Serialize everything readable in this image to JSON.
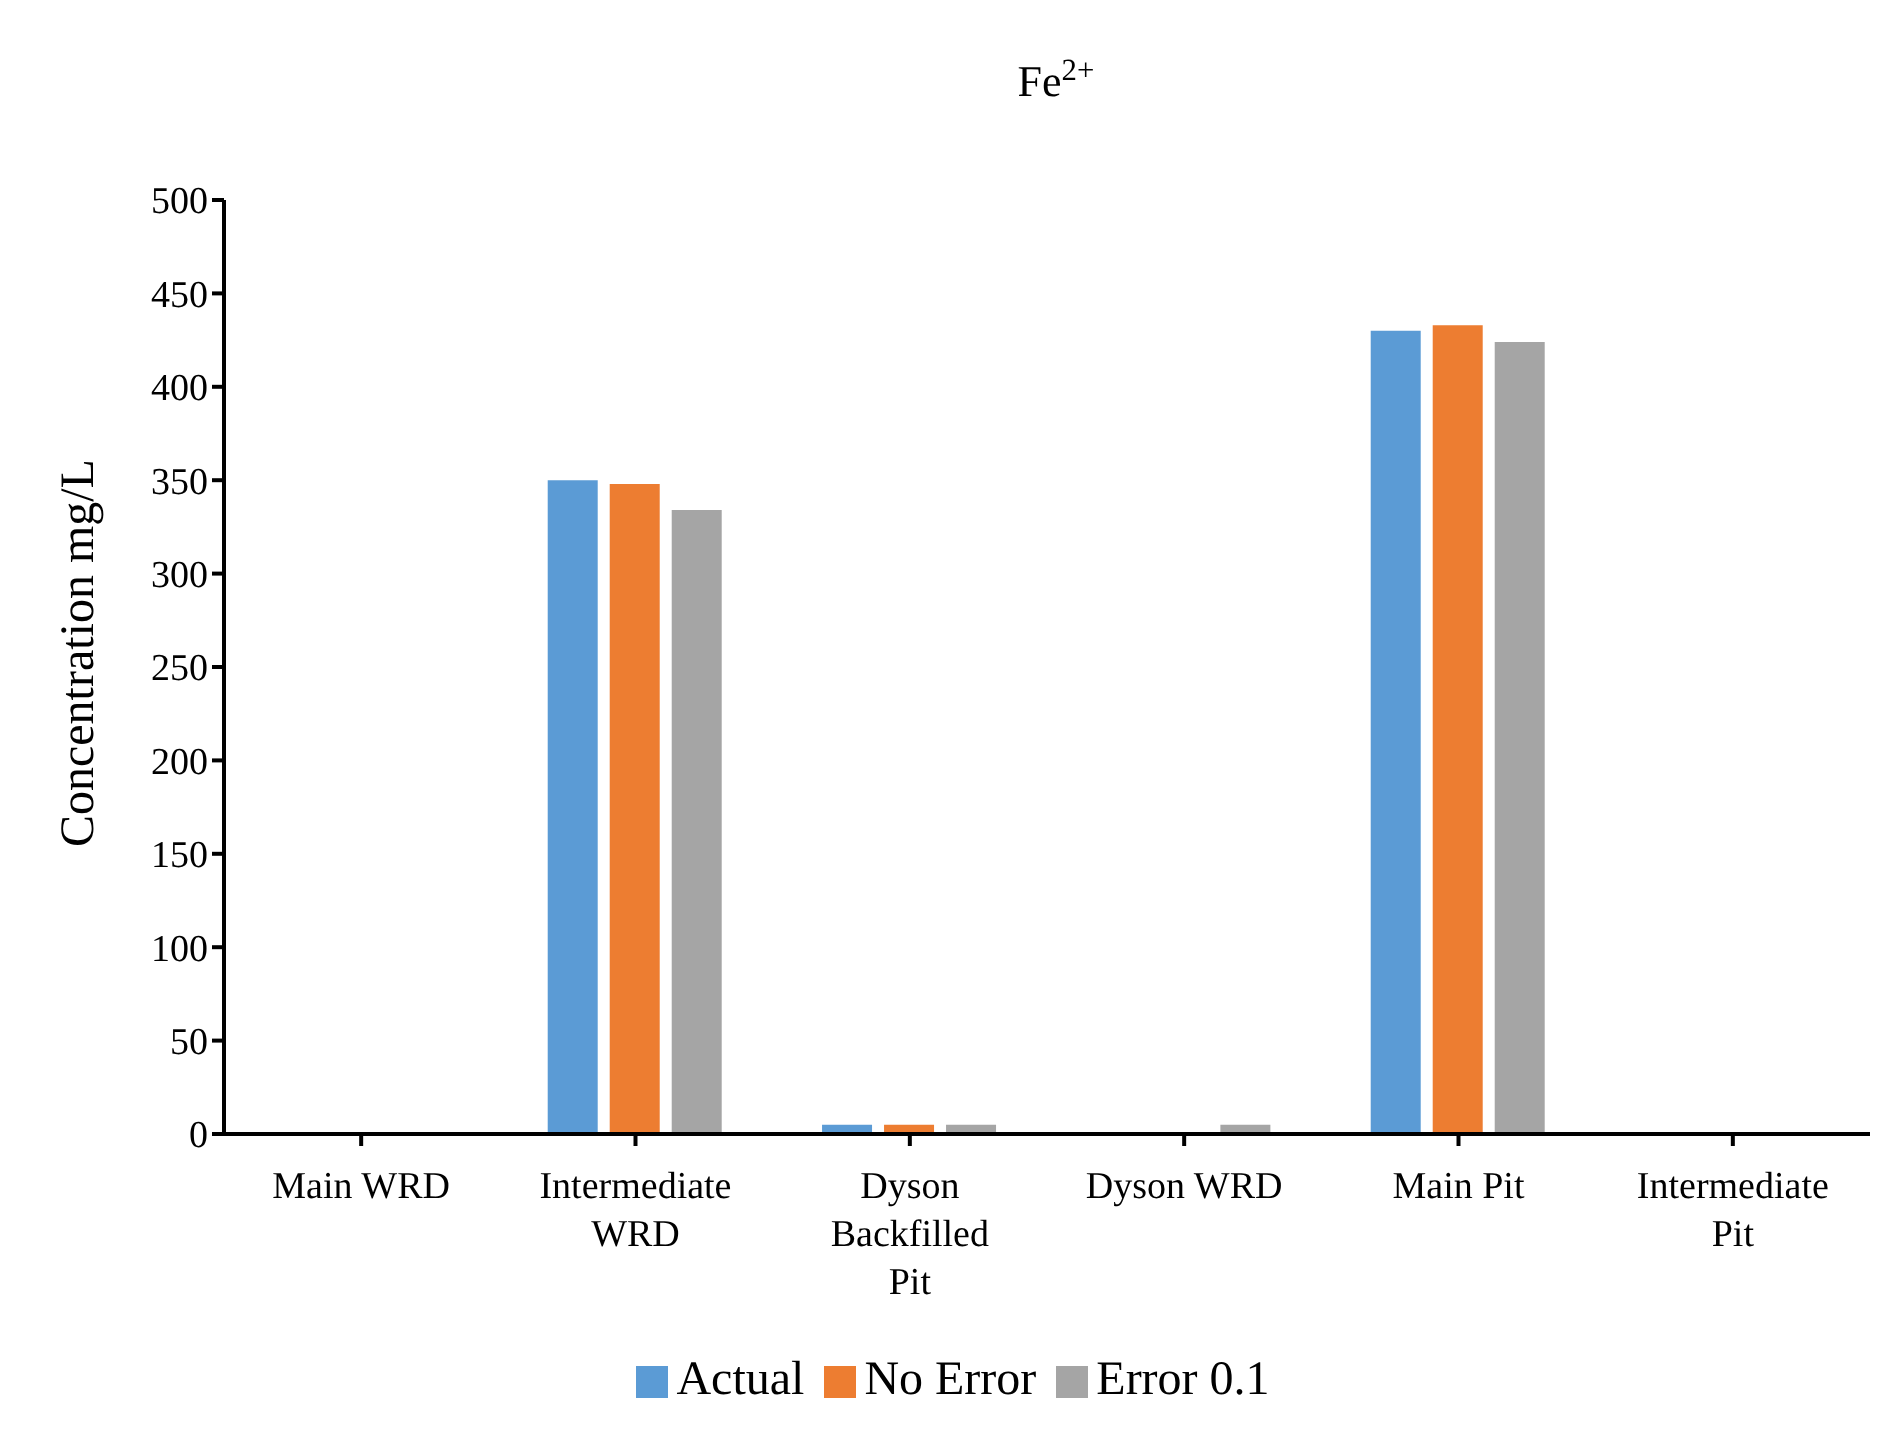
{
  "chart_data": {
    "type": "bar",
    "title": "Fe$^{2+}$",
    "ylabel": "Concentration mg/L",
    "categories": [
      "Main WRD",
      "Intermediate WRD",
      "Dyson Backfilled Pit",
      "Dyson WRD",
      "Main Pit",
      "Intermediate Pit"
    ],
    "series": [
      {
        "name": "Actual",
        "color": "#5b9bd5",
        "values": [
          0,
          350,
          5,
          0,
          430,
          0
        ]
      },
      {
        "name": "No Error",
        "color": "#ed7d31",
        "values": [
          0,
          348,
          5,
          0,
          433,
          0
        ]
      },
      {
        "name": "Error 0.1",
        "color": "#a5a5a5",
        "values": [
          0,
          334,
          5,
          5,
          424,
          0
        ]
      }
    ],
    "ylim": [
      0,
      500
    ],
    "yticks": [
      0,
      50,
      100,
      150,
      200,
      250,
      300,
      350,
      400,
      450,
      500
    ],
    "grid": false,
    "legend": "bottom"
  }
}
